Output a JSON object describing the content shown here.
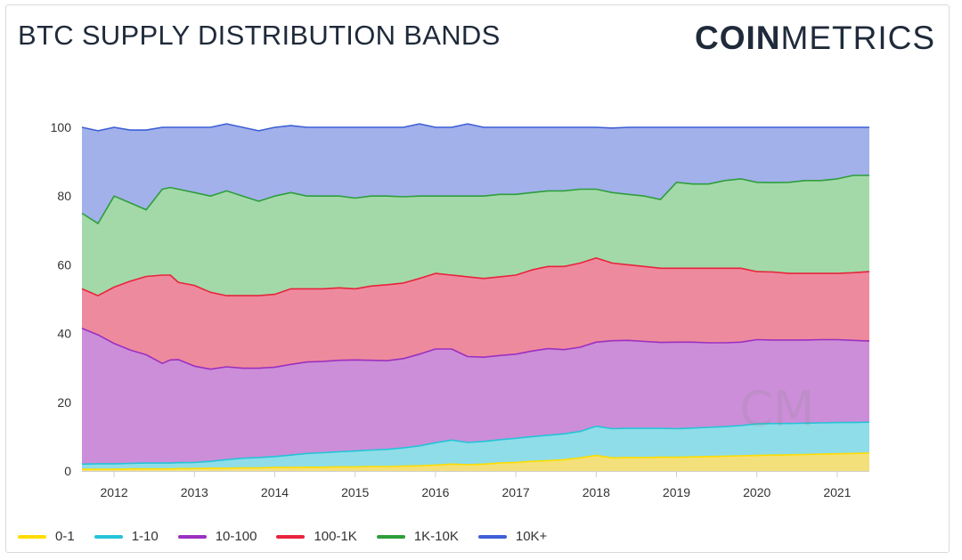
{
  "header": {
    "title": "BTC SUPPLY DISTRIBUTION BANDS",
    "logo_bold": "COIN",
    "logo_light": "METRICS"
  },
  "watermark": "CM",
  "chart_data": {
    "type": "area",
    "stacked": true,
    "title": "BTC SUPPLY DISTRIBUTION BANDS",
    "xlabel": "",
    "ylabel": "",
    "xlim": [
      2011.6,
      2021.4
    ],
    "ylim": [
      0,
      100
    ],
    "yticks": [
      0,
      20,
      40,
      60,
      80,
      100
    ],
    "xticks": [
      2012,
      2013,
      2014,
      2015,
      2016,
      2017,
      2018,
      2019,
      2020,
      2021
    ],
    "xtick_labels": [
      "2012",
      "2013",
      "2014",
      "2015",
      "2016",
      "2017",
      "2018",
      "2019",
      "2020",
      "2021"
    ],
    "grid": false,
    "legend_position": "bottom-left",
    "x": [
      2011.6,
      2011.8,
      2012.0,
      2012.2,
      2012.4,
      2012.6,
      2012.7,
      2012.8,
      2013.0,
      2013.2,
      2013.4,
      2013.6,
      2013.8,
      2014.0,
      2014.2,
      2014.4,
      2014.6,
      2014.8,
      2015.0,
      2015.2,
      2015.4,
      2015.6,
      2015.8,
      2016.0,
      2016.2,
      2016.4,
      2016.6,
      2016.8,
      2017.0,
      2017.2,
      2017.4,
      2017.6,
      2017.8,
      2018.0,
      2018.2,
      2018.4,
      2018.6,
      2018.8,
      2019.0,
      2019.2,
      2019.4,
      2019.6,
      2019.8,
      2020.0,
      2020.2,
      2020.4,
      2020.6,
      2020.8,
      2021.0,
      2021.2,
      2021.4
    ],
    "series": [
      {
        "name": "0-1",
        "color": "#f4e07a",
        "line_color": "#ffdd00",
        "values": [
          0.5,
          0.5,
          0.5,
          0.6,
          0.6,
          0.6,
          0.6,
          0.7,
          0.7,
          0.8,
          0.8,
          0.9,
          0.9,
          1.0,
          1.0,
          1.1,
          1.1,
          1.2,
          1.2,
          1.3,
          1.3,
          1.4,
          1.5,
          1.7,
          2.0,
          1.8,
          2.0,
          2.3,
          2.5,
          2.8,
          3.0,
          3.3,
          3.8,
          4.5,
          3.8,
          3.9,
          3.9,
          4.0,
          4.0,
          4.1,
          4.2,
          4.3,
          4.4,
          4.5,
          4.6,
          4.7,
          4.8,
          4.9,
          5.0,
          5.1,
          5.2
        ]
      },
      {
        "name": "1-10",
        "color": "#8fdde8",
        "line_color": "#24c4d8",
        "values": [
          1.5,
          1.6,
          1.6,
          1.6,
          1.7,
          1.7,
          1.7,
          1.7,
          1.8,
          2.0,
          2.5,
          2.8,
          3.0,
          3.2,
          3.6,
          4.0,
          4.2,
          4.4,
          4.6,
          4.8,
          5.0,
          5.3,
          5.8,
          6.5,
          7.0,
          6.5,
          6.6,
          6.8,
          7.0,
          7.2,
          7.4,
          7.5,
          7.7,
          8.5,
          8.5,
          8.5,
          8.5,
          8.4,
          8.3,
          8.4,
          8.5,
          8.6,
          8.8,
          9.2,
          9.2,
          9.1,
          9.1,
          9.1,
          9.1,
          9.0,
          9.0
        ]
      },
      {
        "name": "10-100",
        "color": "#cc8ed8",
        "line_color": "#9b30c0",
        "values": [
          39.5,
          37.5,
          35.0,
          33.0,
          31.5,
          29.0,
          30.0,
          30.0,
          28.0,
          26.8,
          27.0,
          26.2,
          26.0,
          26.0,
          26.4,
          26.6,
          26.6,
          26.6,
          26.5,
          26.1,
          25.8,
          26.0,
          26.7,
          27.3,
          26.5,
          25.0,
          24.5,
          24.5,
          24.5,
          24.9,
          25.2,
          24.5,
          24.5,
          24.5,
          25.6,
          25.6,
          25.3,
          25.0,
          25.2,
          25.0,
          24.6,
          24.4,
          24.3,
          24.5,
          24.3,
          24.3,
          24.2,
          24.2,
          24.1,
          23.9,
          23.6
        ]
      },
      {
        "name": "100-1K",
        "color": "#ee8a9e",
        "line_color": "#e8243c",
        "values": [
          11.5,
          11.4,
          16.4,
          20.0,
          22.8,
          25.7,
          24.7,
          22.5,
          23.5,
          22.4,
          20.7,
          21.1,
          21.1,
          21.2,
          22.0,
          21.3,
          21.1,
          21.1,
          20.7,
          21.6,
          22.1,
          22.0,
          22.0,
          22.0,
          21.5,
          23.2,
          22.9,
          22.9,
          23.0,
          23.6,
          23.9,
          24.2,
          24.5,
          24.5,
          22.6,
          22.0,
          21.8,
          21.6,
          21.5,
          21.5,
          21.7,
          21.7,
          21.5,
          19.8,
          19.8,
          19.4,
          19.4,
          19.3,
          19.3,
          19.7,
          20.2
        ]
      },
      {
        "name": "1K-10K",
        "color": "#a3d9a8",
        "line_color": "#2e9e3c",
        "values": [
          22.0,
          21.0,
          26.5,
          22.8,
          19.4,
          25.0,
          25.5,
          27.1,
          27.0,
          28.0,
          30.5,
          29.0,
          27.5,
          28.6,
          28.0,
          27.0,
          27.0,
          26.7,
          26.4,
          26.2,
          25.8,
          25.1,
          24.0,
          22.5,
          23.0,
          23.5,
          24.0,
          24.0,
          23.5,
          22.5,
          22.0,
          22.0,
          21.5,
          20.0,
          20.5,
          20.5,
          20.5,
          20.0,
          25.0,
          24.5,
          24.5,
          25.5,
          26.0,
          26.0,
          26.0,
          26.5,
          27.0,
          27.0,
          27.5,
          28.3,
          28.0
        ]
      },
      {
        "name": "10K+",
        "color": "#a2b1ea",
        "line_color": "#3d5fd6",
        "values": [
          25.0,
          27.0,
          20.0,
          21.2,
          23.2,
          18.0,
          17.5,
          18.0,
          19.0,
          20.0,
          19.5,
          20.0,
          20.5,
          20.0,
          19.5,
          20.0,
          20.0,
          20.0,
          20.6,
          20.0,
          20.0,
          20.2,
          21.0,
          20.0,
          20.0,
          21.0,
          20.0,
          19.5,
          19.5,
          19.0,
          18.5,
          18.5,
          18.0,
          18.0,
          18.8,
          19.5,
          20.0,
          21.0,
          16.0,
          16.5,
          16.5,
          15.5,
          15.0,
          16.0,
          16.1,
          16.0,
          15.5,
          15.5,
          15.0,
          14.0,
          14.0
        ]
      }
    ]
  }
}
